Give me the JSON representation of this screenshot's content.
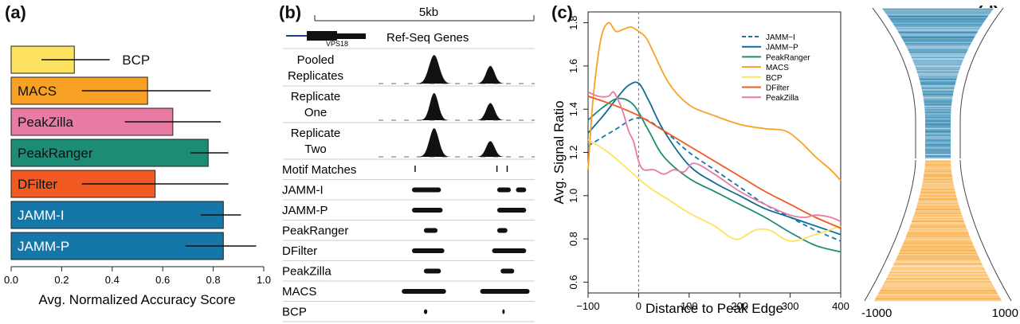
{
  "panels": {
    "a": "(a)",
    "b": "(b)",
    "c": "(c)",
    "d": "(d)"
  },
  "chart_data": [
    {
      "panel": "a",
      "type": "bar",
      "orientation": "horizontal",
      "xlabel": "Avg. Normalized Accuracy Score",
      "xlim": [
        0,
        1
      ],
      "xticks": [
        "0.0",
        "0.2",
        "0.4",
        "0.6",
        "0.8",
        "1.0"
      ],
      "categories": [
        "BCP",
        "MACS",
        "PeakZilla",
        "PeakRanger",
        "DFilter",
        "JAMM-I",
        "JAMM-P"
      ],
      "values": [
        0.25,
        0.54,
        0.64,
        0.78,
        0.57,
        0.84,
        0.84
      ],
      "error_low": [
        0.12,
        0.28,
        0.45,
        0.71,
        0.28,
        0.75,
        0.69
      ],
      "error_high": [
        0.39,
        0.79,
        0.83,
        0.86,
        0.86,
        0.91,
        0.97
      ],
      "colors": [
        "#fde25f",
        "#f9a125",
        "#e97aa4",
        "#1d8c75",
        "#f15a22",
        "#1477a8",
        "#1477a8"
      ],
      "label_colors": [
        "#111111",
        "#111111",
        "#111111",
        "#111111",
        "#111111",
        "#ffffff",
        "#ffffff"
      ],
      "labels_inside": [
        false,
        true,
        true,
        true,
        true,
        true,
        true
      ]
    },
    {
      "panel": "b",
      "type": "genome-track",
      "scale_label": "5kb",
      "gene_track_label": "Ref-Seq Genes",
      "gene_name": "VPS18",
      "signal_tracks": [
        {
          "label": [
            "Pooled",
            "Replicates"
          ],
          "peaks": [
            {
              "center": 0.56,
              "height": 1.0,
              "width": 0.06
            },
            {
              "center": 0.89,
              "height": 0.62,
              "width": 0.05
            }
          ]
        },
        {
          "label": [
            "Replicate",
            "One"
          ],
          "peaks": [
            {
              "center": 0.56,
              "height": 0.95,
              "width": 0.05
            },
            {
              "center": 0.89,
              "height": 0.6,
              "width": 0.05
            }
          ]
        },
        {
          "label": [
            "Replicate",
            "Two"
          ],
          "peaks": [
            {
              "center": 0.56,
              "height": 1.0,
              "width": 0.055
            },
            {
              "center": 0.89,
              "height": 0.55,
              "width": 0.05
            }
          ]
        }
      ],
      "interval_tracks": [
        {
          "label": "Motif Matches",
          "intervals": [
            [
              0.445,
              0.45
            ],
            [
              0.925,
              0.93
            ],
            [
              0.985,
              0.99
            ]
          ],
          "ticks": true
        },
        {
          "label": "JAMM-I",
          "intervals": [
            [
              0.43,
              0.6
            ],
            [
              0.93,
              1.01
            ],
            [
              1.04,
              1.1
            ]
          ]
        },
        {
          "label": "JAMM-P",
          "intervals": [
            [
              0.43,
              0.61
            ],
            [
              0.93,
              1.1
            ]
          ]
        },
        {
          "label": "PeakRanger",
          "intervals": [
            [
              0.5,
              0.58
            ],
            [
              0.93,
              0.99
            ]
          ]
        },
        {
          "label": "DFilter",
          "intervals": [
            [
              0.43,
              0.62
            ],
            [
              0.9,
              1.1
            ]
          ]
        },
        {
          "label": "PeakZilla",
          "intervals": [
            [
              0.5,
              0.6
            ],
            [
              0.95,
              1.03
            ]
          ]
        },
        {
          "label": "MACS",
          "intervals": [
            [
              0.37,
              0.63
            ],
            [
              0.83,
              1.12
            ]
          ]
        },
        {
          "label": "BCP",
          "intervals": [
            [
              0.5,
              0.52
            ],
            [
              0.96,
              0.965
            ]
          ]
        }
      ]
    },
    {
      "panel": "c",
      "type": "line",
      "xlabel": "Distance to Peak Edge",
      "ylabel": "Avg. Signal Ratio",
      "xlim": [
        -100,
        400
      ],
      "ylim": [
        0.6,
        1.8
      ],
      "xticks": [
        "−100",
        "0",
        "100",
        "200",
        "300",
        "400"
      ],
      "yticks": [
        "0.6",
        "0.8",
        "1.0",
        "1.2",
        "1.4",
        "1.6",
        "1.8"
      ],
      "vline_x": 0,
      "series": [
        {
          "name": "JAMM−I",
          "color": "#1477a8",
          "dashed": true,
          "x": [
            -100,
            -50,
            0,
            50,
            100,
            150,
            200,
            250,
            300,
            350,
            400
          ],
          "y": [
            1.23,
            1.3,
            1.36,
            1.3,
            1.2,
            1.12,
            1.04,
            0.96,
            0.9,
            0.84,
            0.79
          ]
        },
        {
          "name": "JAMM−P",
          "color": "#0e6a96",
          "dashed": false,
          "x": [
            -100,
            -70,
            -40,
            -20,
            0,
            20,
            50,
            100,
            150,
            200,
            250,
            300,
            350,
            400
          ],
          "y": [
            1.29,
            1.37,
            1.46,
            1.51,
            1.52,
            1.44,
            1.3,
            1.14,
            1.06,
            1.0,
            0.94,
            0.9,
            0.86,
            0.82
          ]
        },
        {
          "name": "PeakRanger",
          "color": "#1d8c75",
          "dashed": false,
          "x": [
            -100,
            -70,
            -40,
            -10,
            20,
            50,
            100,
            150,
            200,
            250,
            300,
            350,
            400
          ],
          "y": [
            1.35,
            1.41,
            1.45,
            1.42,
            1.3,
            1.18,
            1.08,
            1.02,
            0.96,
            0.9,
            0.83,
            0.77,
            0.74
          ]
        },
        {
          "name": "MACS",
          "color": "#f9a125",
          "dashed": false,
          "x": [
            -100,
            -90,
            -75,
            -60,
            -45,
            -30,
            -15,
            0,
            15,
            30,
            60,
            100,
            150,
            200,
            250,
            290,
            320,
            350,
            380,
            400
          ],
          "y": [
            1.12,
            1.45,
            1.72,
            1.8,
            1.76,
            1.77,
            1.78,
            1.76,
            1.73,
            1.66,
            1.52,
            1.42,
            1.37,
            1.33,
            1.31,
            1.3,
            1.25,
            1.18,
            1.12,
            1.07
          ]
        },
        {
          "name": "BCP",
          "color": "#fde25f",
          "dashed": false,
          "x": [
            -100,
            -60,
            -20,
            20,
            60,
            100,
            150,
            180,
            200,
            230,
            260,
            300,
            350,
            400
          ],
          "y": [
            1.26,
            1.2,
            1.12,
            1.04,
            0.98,
            0.92,
            0.86,
            0.81,
            0.8,
            0.84,
            0.84,
            0.79,
            0.82,
            0.86
          ]
        },
        {
          "name": "DFilter",
          "color": "#f15a22",
          "dashed": false,
          "x": [
            -100,
            -50,
            0,
            50,
            100,
            150,
            200,
            250,
            300,
            350,
            400
          ],
          "y": [
            1.46,
            1.42,
            1.37,
            1.3,
            1.23,
            1.16,
            1.09,
            1.02,
            0.96,
            0.9,
            0.85
          ]
        },
        {
          "name": "PeakZilla",
          "color": "#e97aa4",
          "dashed": false,
          "x": [
            -100,
            -80,
            -60,
            -50,
            -40,
            -30,
            -20,
            -10,
            0,
            10,
            30,
            50,
            70,
            90,
            110,
            150,
            200,
            250,
            300,
            330,
            350,
            380,
            400
          ],
          "y": [
            1.48,
            1.46,
            1.46,
            1.48,
            1.44,
            1.38,
            1.3,
            1.25,
            1.16,
            1.12,
            1.12,
            1.1,
            1.12,
            1.11,
            1.15,
            1.1,
            1.02,
            0.96,
            0.91,
            0.9,
            0.91,
            0.9,
            0.88
          ]
        }
      ],
      "legend_position": "top-right"
    },
    {
      "panel": "d",
      "type": "heatmap",
      "xtick_left": "-1000",
      "xtick_right": "1000",
      "blocks": [
        {
          "color": "#1477a8",
          "rows": 190
        },
        {
          "color": "#f9a125",
          "rows": 180
        }
      ]
    }
  ]
}
